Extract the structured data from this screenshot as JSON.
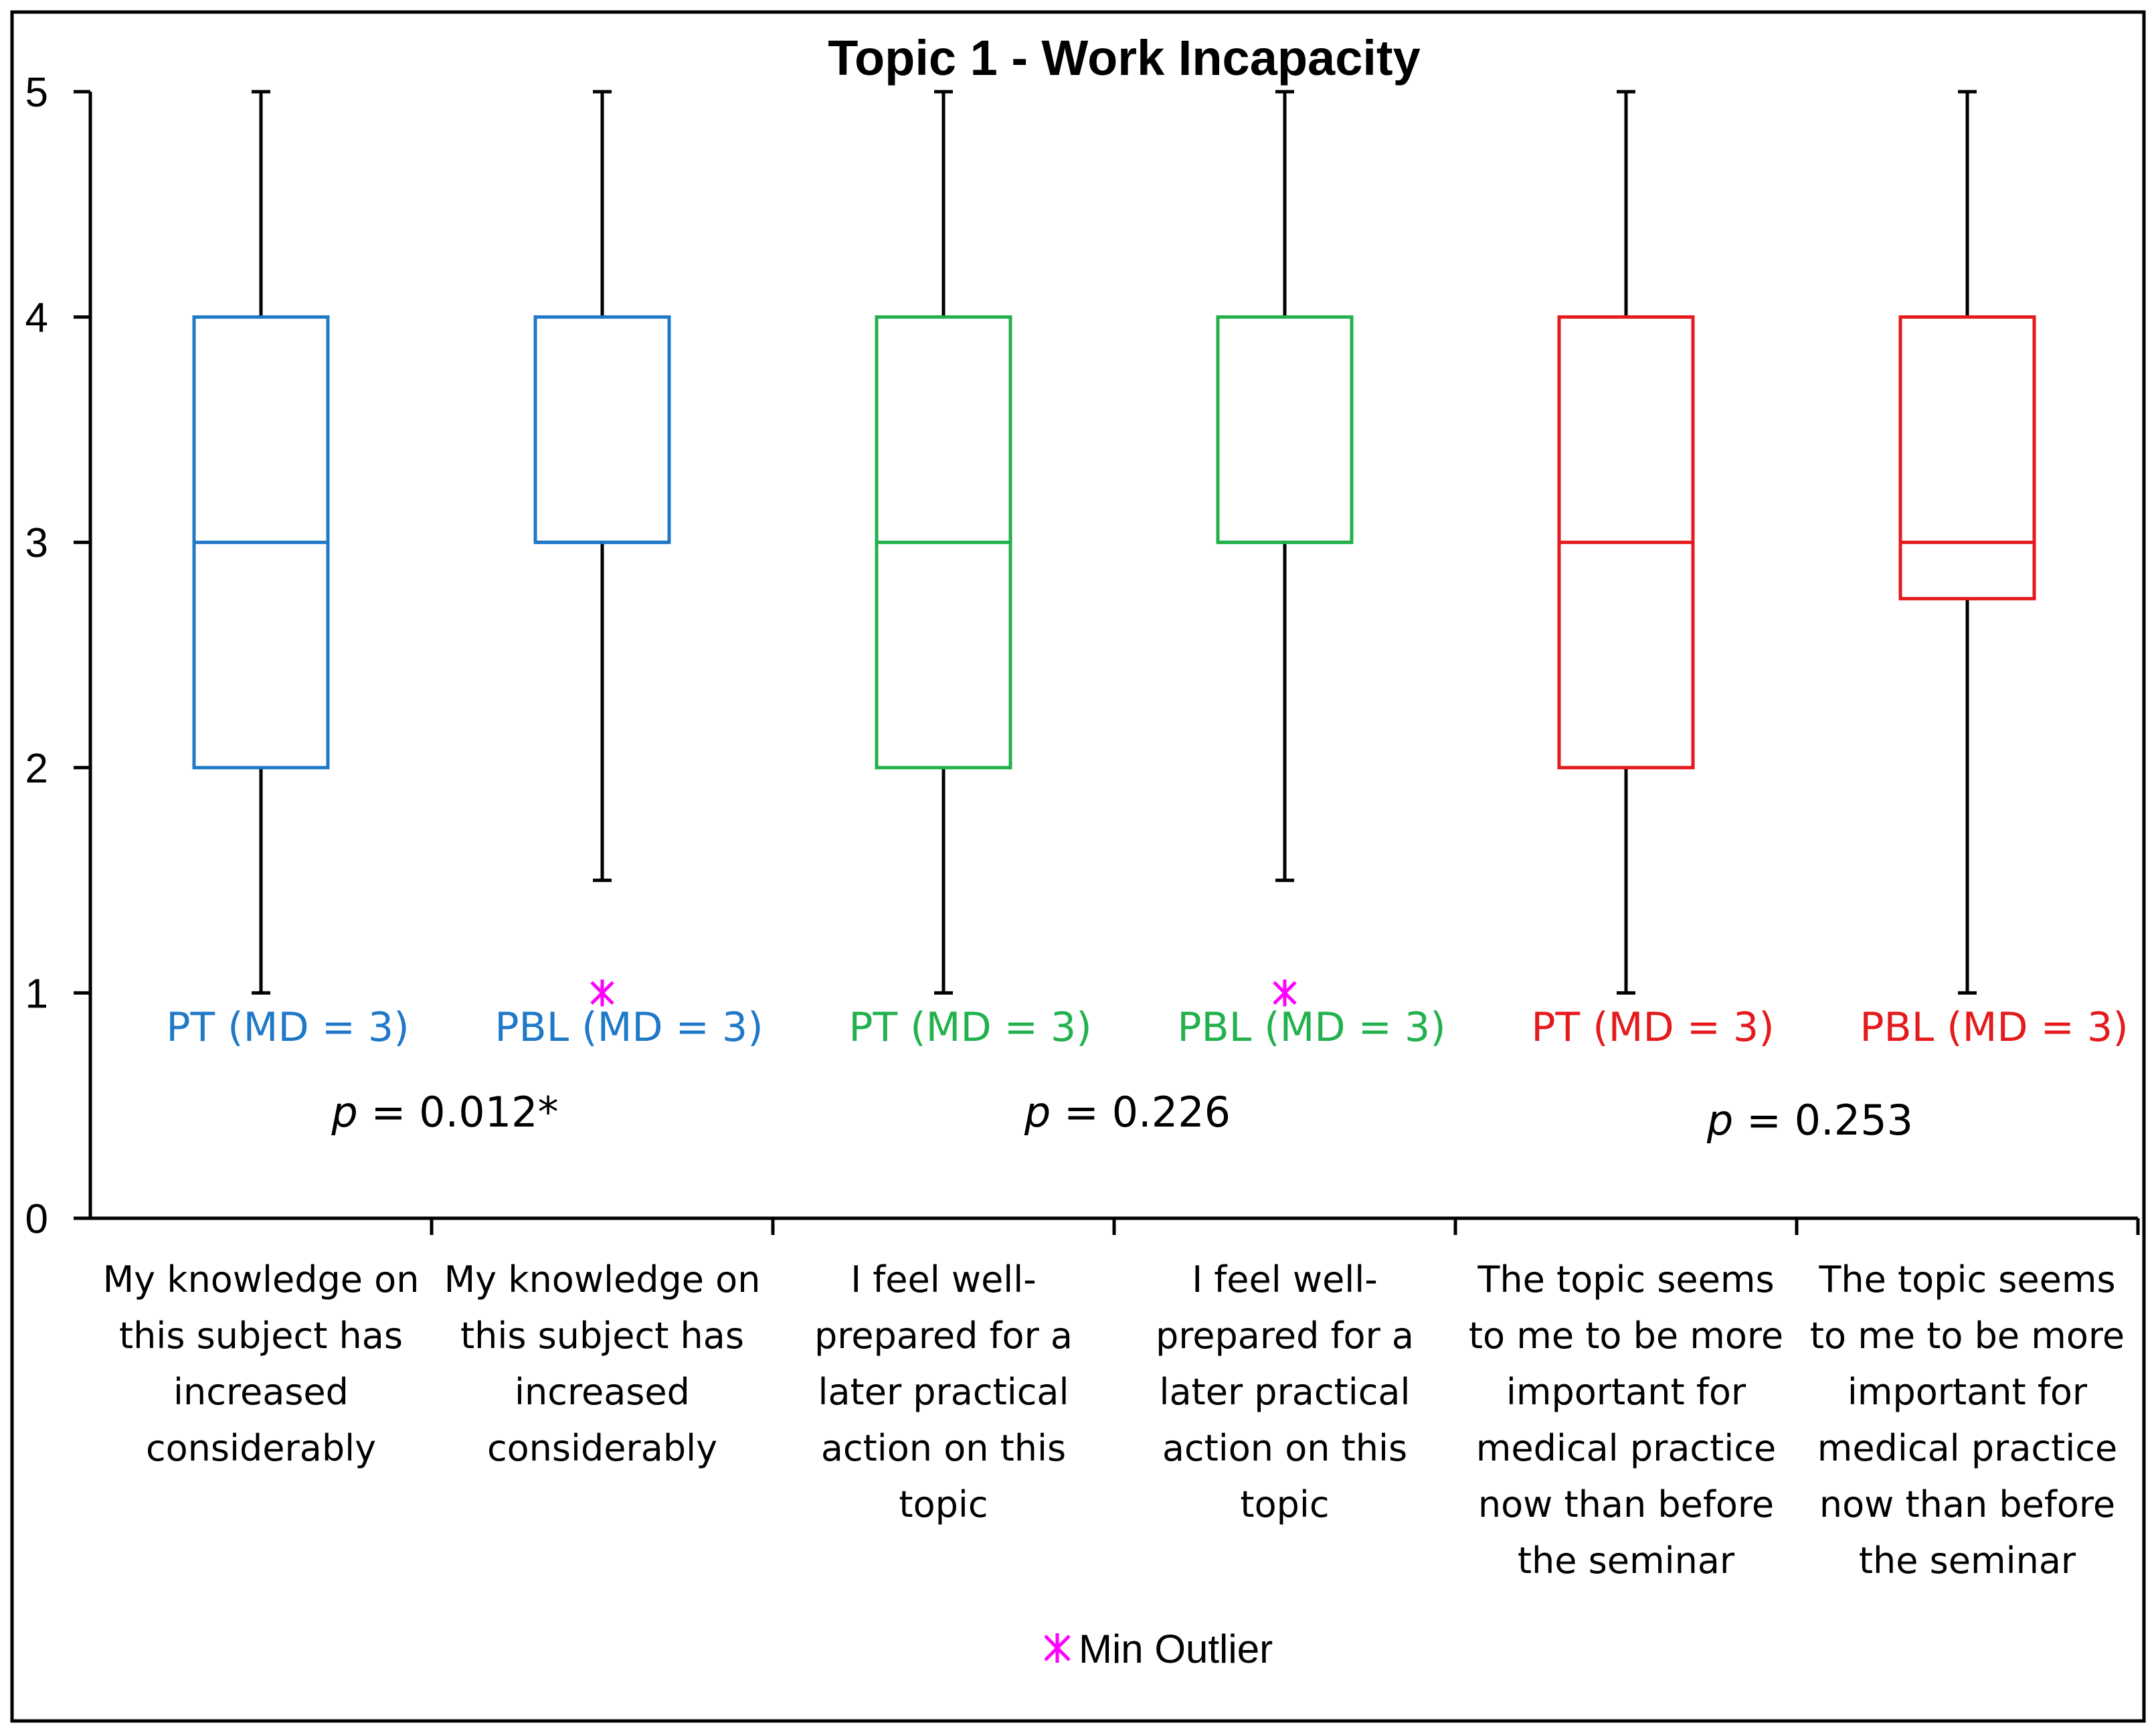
{
  "chart_data": {
    "type": "boxplot",
    "title": "Topic 1 - Work Incapacity",
    "xlabel": "",
    "ylabel": "",
    "ylim": [
      0,
      5
    ],
    "y_ticks": [
      "0",
      "1",
      "2",
      "3",
      "4",
      "5"
    ],
    "grid": false,
    "categories": [
      "My knowledge on this subject has increased considerably",
      "My knowledge on this subject has increased considerably",
      "I feel well-prepared for a later practical action on this topic",
      "I feel well-prepared for a later practical action on this topic",
      "The topic seems to me to be more important for medical practice now than before the seminar",
      "The topic seems to me to be more important for medical practice now than before the seminar"
    ],
    "category_lines": [
      [
        "My knowledge on",
        "this subject has",
        "increased",
        "considerably"
      ],
      [
        "My knowledge on",
        "this subject has",
        "increased",
        "considerably"
      ],
      [
        "I feel well-",
        "prepared for a",
        "later practical",
        "action on this",
        "topic"
      ],
      [
        "I feel well-",
        "prepared for a",
        "later practical",
        "action on this",
        "topic"
      ],
      [
        "The topic seems",
        "to me to be more",
        "important for",
        "medical practice",
        "now than before",
        "the seminar"
      ],
      [
        "The topic seems",
        "to me to be more",
        "important for",
        "medical practice",
        "now than before",
        "the seminar"
      ]
    ],
    "boxes": [
      {
        "group_label": "PT (MD = 3)",
        "min": 1,
        "q1": 2,
        "median": 3,
        "q3": 4,
        "max": 5,
        "outliers": [],
        "color": "#1f78c8"
      },
      {
        "group_label": "PBL (MD = 3)",
        "min": 1.5,
        "q1": 3,
        "median": 3,
        "q3": 4,
        "max": 5,
        "outliers": [
          1
        ],
        "color": "#1f78c8"
      },
      {
        "group_label": "PT (MD = 3)",
        "min": 1,
        "q1": 2,
        "median": 3,
        "q3": 4,
        "max": 5,
        "outliers": [],
        "color": "#22b14c"
      },
      {
        "group_label": "PBL (MD = 3)",
        "min": 1.5,
        "q1": 3,
        "median": 3,
        "q3": 4,
        "max": 5,
        "outliers": [
          1
        ],
        "color": "#22b14c"
      },
      {
        "group_label": "PT (MD = 3)",
        "min": 1,
        "q1": 2,
        "median": 3,
        "q3": 4,
        "max": 5,
        "outliers": [],
        "color": "#e41a1c"
      },
      {
        "group_label": "PBL (MD = 3)",
        "min": 1,
        "q1": 2.75,
        "median": 3,
        "q3": 4,
        "max": 5,
        "outliers": [],
        "color": "#e41a1c"
      }
    ],
    "p_values": [
      {
        "italic": "p",
        "rest": " = 0.012*",
        "pair": [
          0,
          1
        ]
      },
      {
        "italic": "p",
        "rest": " = 0.226",
        "pair": [
          2,
          3
        ]
      },
      {
        "italic": "p",
        "rest": " = 0.253",
        "pair": [
          4,
          5
        ]
      }
    ],
    "legend": {
      "placement": "bottom",
      "entries": [
        {
          "label": "Min Outlier",
          "marker": "asterisk",
          "color": "#ff00ff"
        }
      ]
    }
  }
}
